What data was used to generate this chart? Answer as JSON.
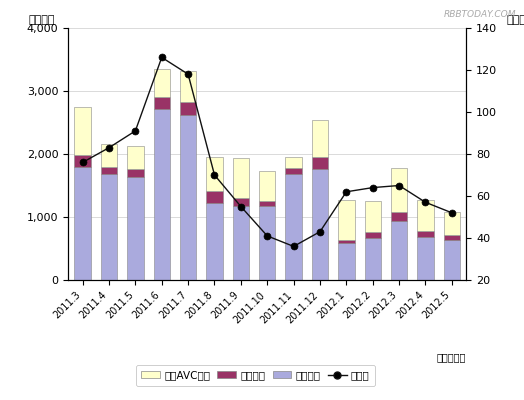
{
  "categories": [
    "2011.3",
    "2011.4",
    "2011.5",
    "2011.6",
    "2011.7",
    "2011.8",
    "2011.9",
    "2011.10",
    "2011.11",
    "2011.12",
    "2012.1",
    "2012.2",
    "2012.3",
    "2012.4",
    "2012.5"
  ],
  "eizo": [
    1800,
    1680,
    1640,
    2720,
    2620,
    1230,
    1180,
    1180,
    1680,
    1760,
    590,
    670,
    940,
    690,
    640
  ],
  "onsei": [
    190,
    120,
    120,
    190,
    210,
    175,
    115,
    75,
    95,
    195,
    45,
    95,
    145,
    95,
    75
  ],
  "car_avc": [
    760,
    360,
    370,
    440,
    490,
    540,
    640,
    470,
    175,
    590,
    640,
    490,
    690,
    490,
    370
  ],
  "yoy": [
    76,
    83,
    91,
    126,
    118,
    70,
    55,
    41,
    36,
    43,
    62,
    64,
    65,
    57,
    52
  ],
  "color_eizo": "#aaaadd",
  "color_onsei": "#993366",
  "color_car_avc": "#ffffcc",
  "color_line": "#111111",
  "ylabel_left": "（億円）",
  "ylabel_right": "（％）",
  "xlabel": "（年・月）",
  "ylim_left": [
    0,
    4000
  ],
  "ylim_right": [
    20,
    140
  ],
  "yticks_left": [
    0,
    1000,
    2000,
    3000,
    4000
  ],
  "ytick_labels_left": [
    "0",
    "1,000",
    "2,000",
    "3,000",
    "4,000"
  ],
  "yticks_right": [
    20,
    40,
    60,
    80,
    100,
    120,
    140
  ],
  "legend_labels": [
    "カーAVC機器",
    "音声機器",
    "映像機器",
    "前年比"
  ],
  "watermark": "RBBTODAY.COM"
}
